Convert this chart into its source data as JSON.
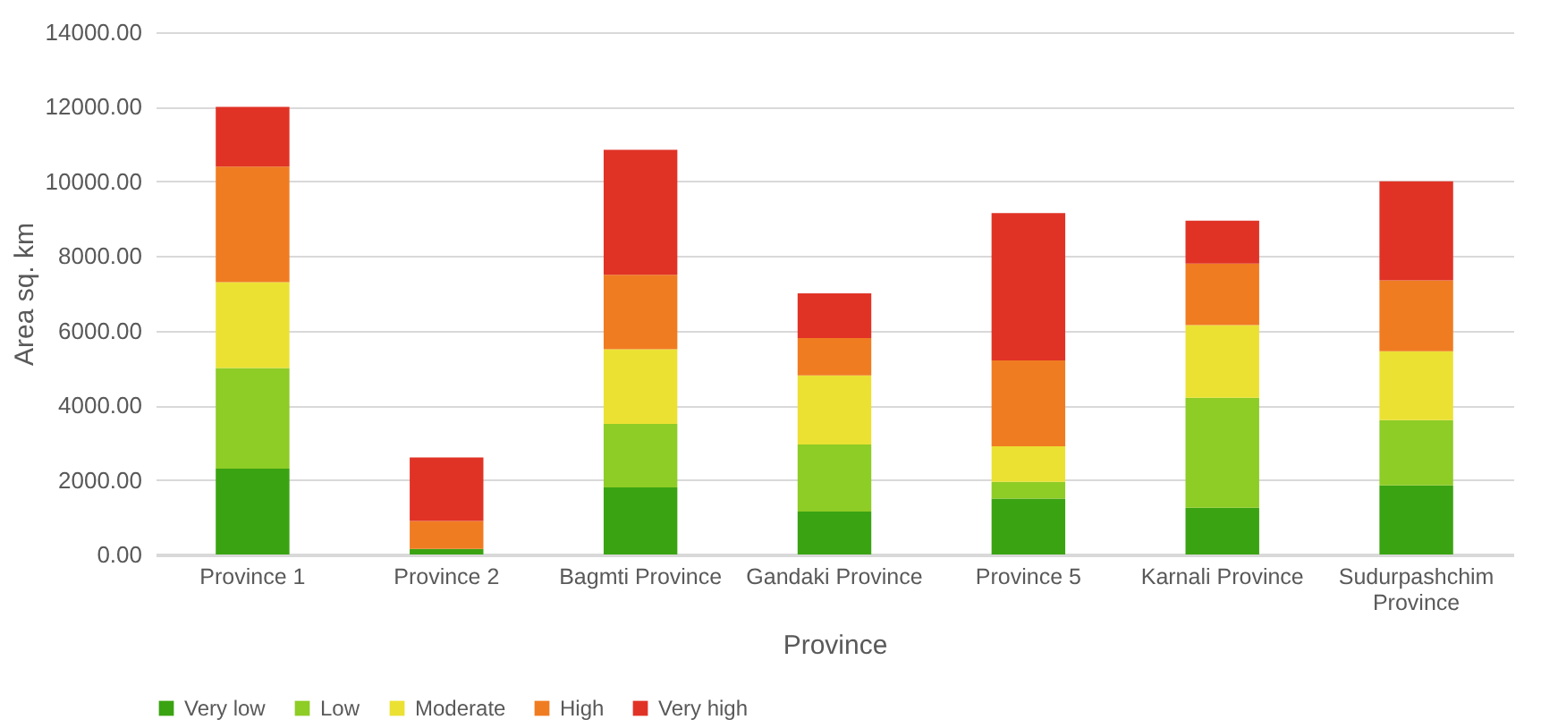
{
  "chart_data": {
    "type": "bar",
    "stacked": true,
    "xlabel": "Province",
    "ylabel": "Area sq. km",
    "categories": [
      "Province 1",
      "Province 2",
      "Bagmti Province",
      "Gandaki Province",
      "Province 5",
      "Karnali Province",
      "Sudurpashchim Province"
    ],
    "series": [
      {
        "name": "Very low",
        "color": "#3aa312",
        "values": [
          2300,
          150,
          1800,
          1150,
          1500,
          1250,
          1850
        ]
      },
      {
        "name": "Low",
        "color": "#8ecc26",
        "values": [
          2700,
          null,
          1700,
          1800,
          450,
          2950,
          1750
        ]
      },
      {
        "name": "Moderate",
        "color": "#ebe133",
        "values": [
          2300,
          null,
          2000,
          1850,
          950,
          1950,
          1850
        ]
      },
      {
        "name": "High",
        "color": "#f07c22",
        "values": [
          3100,
          750,
          2000,
          1000,
          2300,
          1650,
          1900
        ]
      },
      {
        "name": "Very high",
        "color": "#e03326",
        "values": [
          1600,
          1700,
          3350,
          1200,
          3950,
          1150,
          2650
        ]
      }
    ],
    "ylim": [
      0,
      14000
    ],
    "yticks": [
      {
        "value": 0,
        "label": "0.00"
      },
      {
        "value": 2000,
        "label": "2000.00"
      },
      {
        "value": 4000,
        "label": "4000.00"
      },
      {
        "value": 6000,
        "label": "6000.00"
      },
      {
        "value": 8000,
        "label": "8000.00"
      },
      {
        "value": 10000,
        "label": "10000.00"
      },
      {
        "value": 12000,
        "label": "12000.00"
      },
      {
        "value": 14000,
        "label": "14000.00"
      }
    ],
    "grid": "y",
    "legend": "bottom"
  }
}
